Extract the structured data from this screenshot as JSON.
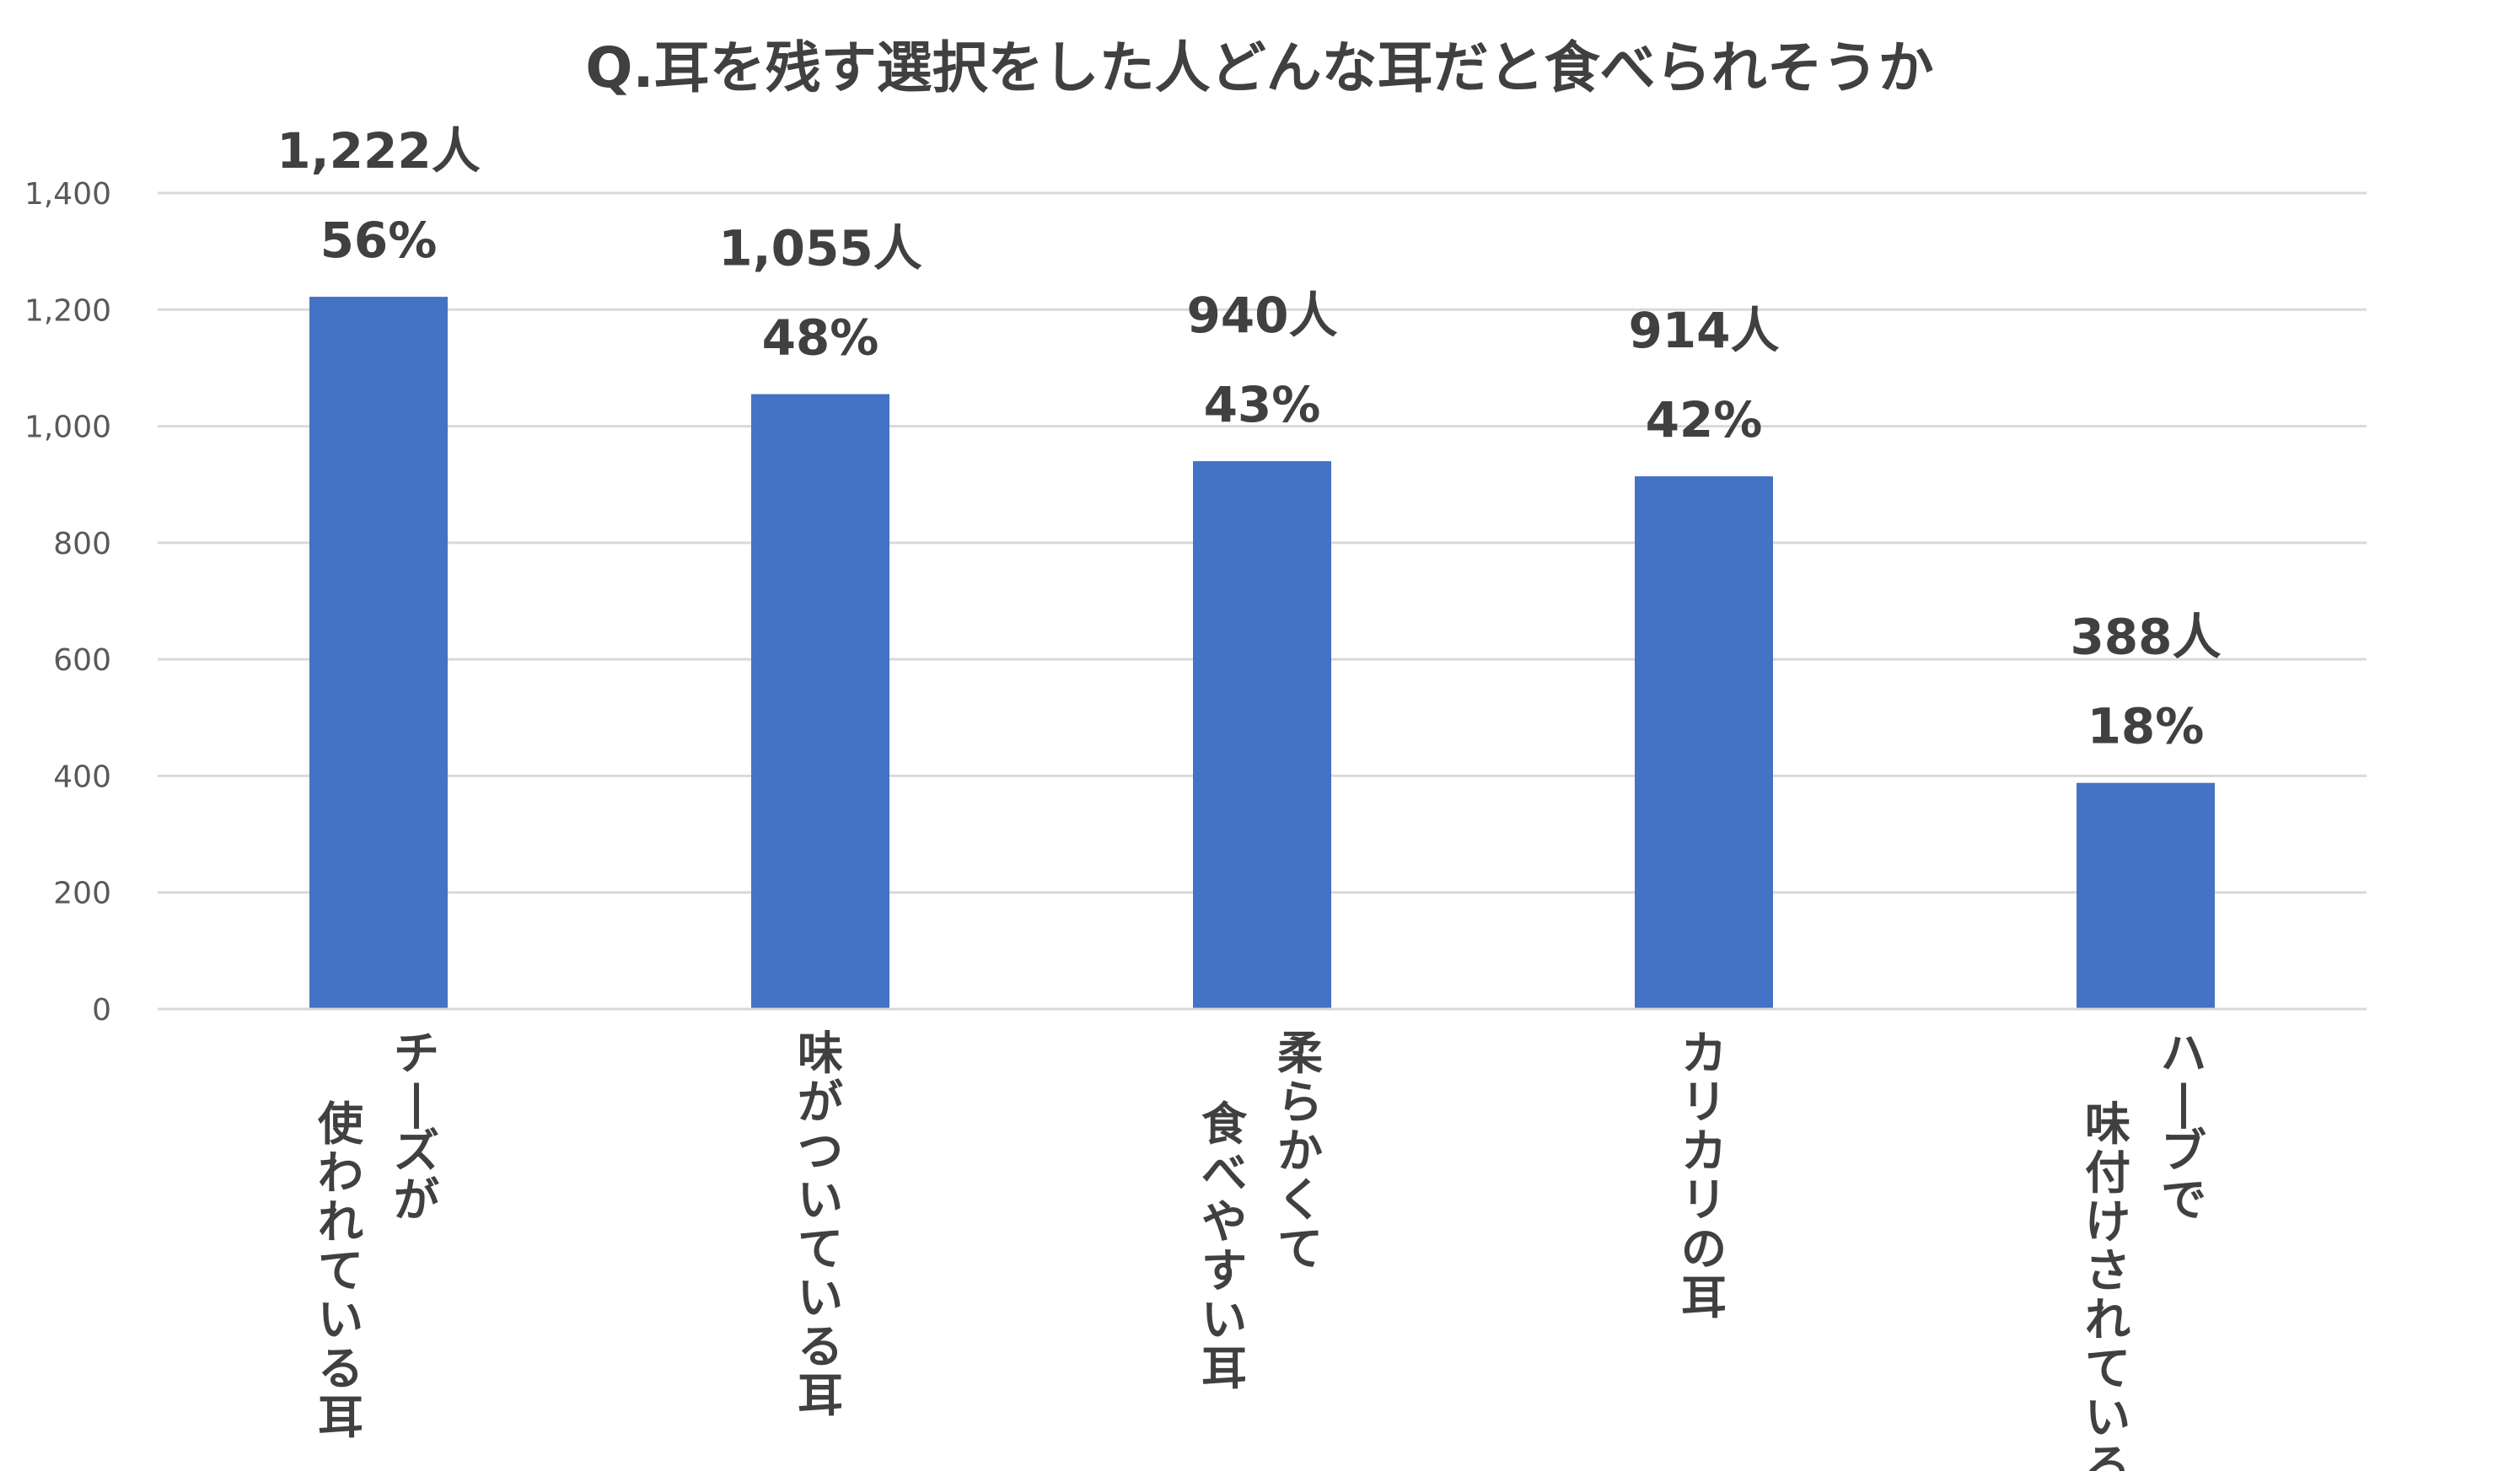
{
  "chart_data": {
    "type": "bar",
    "title": "Q.耳を残す選択をした人どんな耳だと食べられそうか",
    "categories": [
      "チーズが\n使われている耳",
      "味がついている耳",
      "柔らかくて\n食べやすい耳",
      "カリカリの耳",
      "ハーブで\n味付けされている耳"
    ],
    "values": [
      1222,
      1055,
      940,
      914,
      388
    ],
    "data_labels": [
      {
        "count": "1,222人",
        "percent": "56%"
      },
      {
        "count": "1,055人",
        "percent": "48%"
      },
      {
        "count": "940人",
        "percent": "43%"
      },
      {
        "count": "914人",
        "percent": "42%"
      },
      {
        "count": "388人",
        "percent": "18%"
      }
    ],
    "y_ticks": [
      "0",
      "200",
      "400",
      "600",
      "800",
      "1,000",
      "1,200",
      "1,400"
    ],
    "ylim": [
      0,
      1400
    ],
    "xlabel": "",
    "ylabel": "",
    "grid": true,
    "legend": "none",
    "colors": {
      "bar": "#4472C4",
      "grid": "#D9D9D9",
      "text": "#404040",
      "tick": "#595959"
    }
  }
}
